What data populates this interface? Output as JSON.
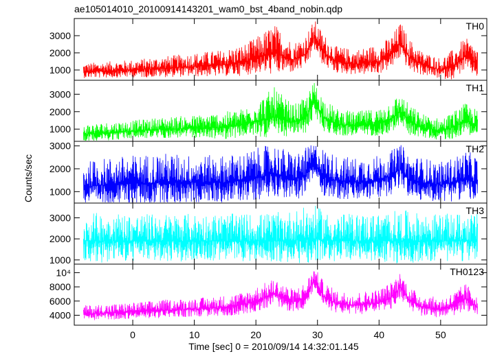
{
  "chart_data": {
    "type": "line",
    "title": "ae105014010_20100914143201_wam0_bst_4band_nobin.qdp",
    "xlabel": "Time [sec] 0 = 2010/09/14 14:32:01.145",
    "ylabel": "Counts/sec",
    "xlim": [
      -9.5,
      57.5
    ],
    "x_ticks": [
      0,
      10,
      20,
      30,
      40,
      50
    ],
    "panels": [
      {
        "name": "TH0",
        "color": "#ff0000",
        "ylim": [
          400,
          4000
        ],
        "y_ticks": [
          1000,
          2000,
          3000
        ],
        "y_tick_labels": [
          "1000",
          "2000",
          "3000"
        ],
        "envelope": {
          "x": [
            -8,
            -4,
            0,
            5,
            10,
            15,
            18,
            20,
            23,
            26,
            28,
            29.5,
            31,
            33,
            36,
            40,
            42,
            43.5,
            45,
            47,
            50,
            52,
            54,
            56
          ],
          "mean": [
            900,
            950,
            1000,
            1100,
            1200,
            1300,
            1450,
            1700,
            2000,
            1600,
            1900,
            2900,
            2000,
            1500,
            1350,
            1500,
            1900,
            2600,
            1700,
            1300,
            1000,
            1200,
            1800,
            1300
          ],
          "peak": [
            1400,
            1500,
            1600,
            1800,
            2000,
            2200,
            2500,
            2900,
            3700,
            2600,
            3000,
            3950,
            3100,
            2400,
            2200,
            2500,
            3000,
            3800,
            2800,
            2100,
            1700,
            2200,
            2900,
            2300
          ]
        }
      },
      {
        "name": "TH1",
        "color": "#00ff00",
        "ylim": [
          300,
          3800
        ],
        "y_ticks": [
          1000,
          2000,
          3000
        ],
        "y_tick_labels": [
          "1000",
          "2000",
          "3000"
        ],
        "envelope": {
          "x": [
            -8,
            -4,
            0,
            5,
            10,
            15,
            18,
            20,
            23,
            26,
            28,
            29.5,
            31,
            33,
            36,
            40,
            42,
            43.5,
            45,
            47,
            50,
            52,
            54,
            56
          ],
          "mean": [
            700,
            800,
            900,
            1000,
            1050,
            1100,
            1250,
            1450,
            1700,
            1400,
            1600,
            2600,
            1700,
            1300,
            1200,
            1300,
            1600,
            2000,
            1400,
            1100,
            900,
            1100,
            1500,
            1200
          ],
          "peak": [
            1300,
            1400,
            1500,
            1700,
            1800,
            2000,
            2200,
            2600,
            3400,
            2400,
            2800,
            3750,
            2800,
            2200,
            2000,
            2200,
            2700,
            3000,
            2400,
            1900,
            1600,
            2000,
            2500,
            2100
          ]
        }
      },
      {
        "name": "TH2",
        "color": "#0000ff",
        "ylim": [
          500,
          3200
        ],
        "y_ticks": [
          1000,
          2000,
          3000
        ],
        "y_tick_labels": [
          "1000",
          "2000",
          "3000"
        ],
        "envelope": {
          "x": [
            -8,
            -4,
            0,
            5,
            10,
            15,
            18,
            20,
            23,
            26,
            28,
            29.5,
            31,
            33,
            36,
            40,
            42,
            43.5,
            45,
            47,
            50,
            52,
            54,
            56
          ],
          "mean": [
            1200,
            1300,
            1350,
            1400,
            1400,
            1400,
            1500,
            1600,
            1800,
            1500,
            1700,
            2300,
            1700,
            1500,
            1400,
            1500,
            1700,
            2000,
            1500,
            1400,
            1300,
            1400,
            1600,
            1400
          ],
          "peak": [
            2300,
            2500,
            2600,
            2700,
            2600,
            2600,
            2700,
            2900,
            3100,
            2700,
            2900,
            3150,
            2900,
            2600,
            2500,
            2600,
            2800,
            3100,
            2600,
            2500,
            2300,
            2500,
            2800,
            2600
          ]
        }
      },
      {
        "name": "TH3",
        "color": "#00ffff",
        "ylim": [
          800,
          3700
        ],
        "y_ticks": [
          1000,
          2000,
          3000
        ],
        "y_tick_labels": [
          "1000",
          "2000",
          "3000"
        ],
        "envelope": {
          "x": [
            -8,
            -4,
            0,
            5,
            10,
            15,
            20,
            25,
            29.5,
            32,
            35,
            40,
            43.5,
            47,
            50,
            53,
            56
          ],
          "mean": [
            1900,
            1900,
            1900,
            1900,
            1900,
            1900,
            1900,
            1900,
            2000,
            1900,
            1900,
            1900,
            1900,
            1900,
            1900,
            1900,
            1900
          ],
          "peak": [
            3200,
            3300,
            3200,
            3200,
            3200,
            3200,
            3200,
            3300,
            3600,
            3200,
            3200,
            3200,
            3400,
            3200,
            3200,
            3200,
            3200
          ]
        }
      },
      {
        "name": "TH0123",
        "color": "#ff00ff",
        "ylim": [
          2600,
          11200
        ],
        "y_ticks": [
          4000,
          6000,
          8000,
          10000
        ],
        "y_tick_labels": [
          "4000",
          "6000",
          "8000",
          "10⁴"
        ],
        "envelope": {
          "x": [
            -8,
            -4,
            0,
            5,
            10,
            15,
            18,
            20,
            23,
            26,
            28,
            29.5,
            31,
            33,
            36,
            40,
            42,
            43.5,
            45,
            47,
            50,
            52,
            54,
            56
          ],
          "mean": [
            4200,
            4300,
            4500,
            4700,
            4900,
            5100,
            5500,
            6000,
            7000,
            5800,
            6500,
            9000,
            6700,
            5700,
            5400,
            5800,
            6500,
            8000,
            6000,
            5200,
            4800,
            5300,
            6300,
            5200
          ],
          "peak": [
            5400,
            5600,
            5800,
            6200,
            6400,
            6800,
            7300,
            8000,
            9200,
            7700,
            8600,
            10800,
            8800,
            7500,
            7200,
            7700,
            8700,
            10200,
            7900,
            7000,
            6400,
            7200,
            8500,
            7100
          ]
        }
      }
    ]
  }
}
